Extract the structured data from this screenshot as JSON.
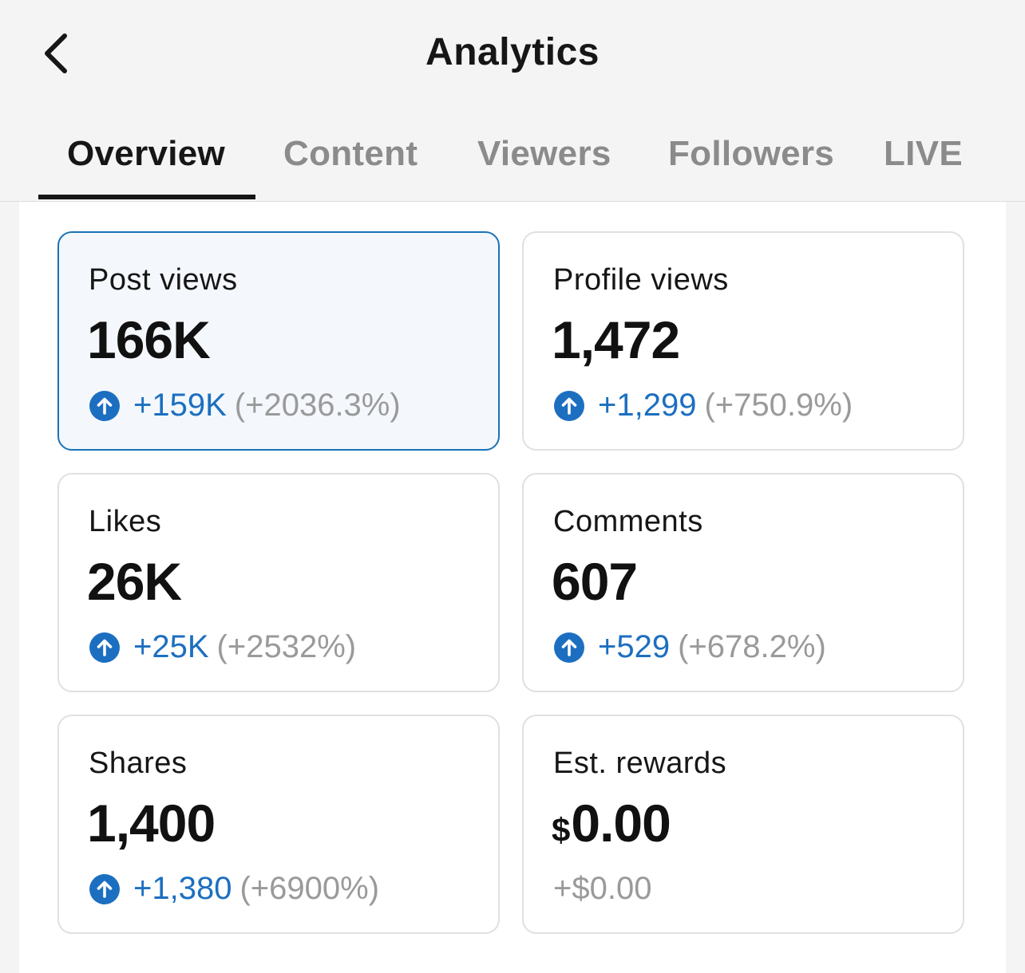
{
  "header": {
    "title": "Analytics"
  },
  "tabs": [
    {
      "label": "Overview",
      "active": true
    },
    {
      "label": "Content",
      "active": false
    },
    {
      "label": "Viewers",
      "active": false
    },
    {
      "label": "Followers",
      "active": false
    },
    {
      "label": "LIVE",
      "active": false
    }
  ],
  "colors": {
    "accent": "#1c6fc0",
    "selected_border": "#1a73b5",
    "muted": "#9a9a9a"
  },
  "cards": [
    {
      "label": "Post views",
      "value": "166K",
      "delta": "+159K",
      "pct": "(+2036.3%)",
      "trend": "up",
      "selected": true
    },
    {
      "label": "Profile views",
      "value": "1,472",
      "delta": "+1,299",
      "pct": "(+750.9%)",
      "trend": "up",
      "selected": false
    },
    {
      "label": "Likes",
      "value": "26K",
      "delta": "+25K",
      "pct": "(+2532%)",
      "trend": "up",
      "selected": false
    },
    {
      "label": "Comments",
      "value": "607",
      "delta": "+529",
      "pct": "(+678.2%)",
      "trend": "up",
      "selected": false
    },
    {
      "label": "Shares",
      "value": "1,400",
      "delta": "+1,380",
      "pct": "(+6900%)",
      "trend": "up",
      "selected": false
    },
    {
      "label": "Est. rewards",
      "currency": "$",
      "value": "0.00",
      "change": "+$0.00",
      "trend": "none",
      "selected": false
    }
  ]
}
